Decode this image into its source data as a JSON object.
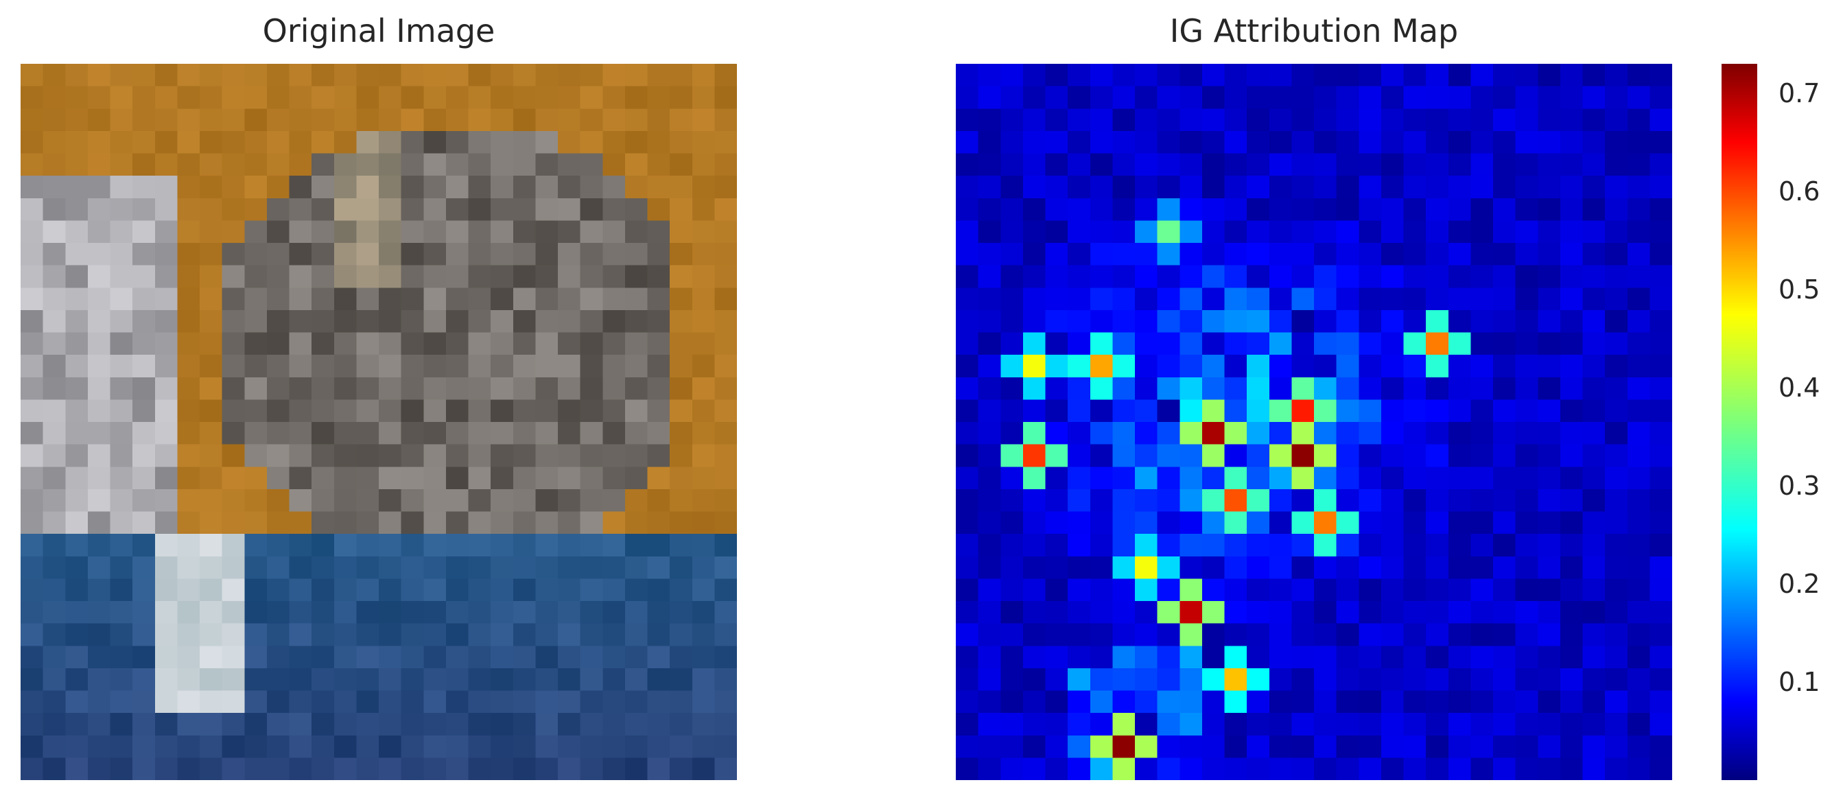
{
  "chart_data": [
    {
      "type": "image",
      "title": "Original Image",
      "grid": false,
      "note_colors": {
        "sky": "#b57a1f",
        "water": "#2a5f8f",
        "animal": "#6f6f6f"
      }
    },
    {
      "type": "heatmap",
      "title": "IG Attribution Map",
      "grid": false,
      "colormap": "jet",
      "vmin": 0.0,
      "vmax": 0.73,
      "colorbar_ticks": [
        "0.1",
        "0.2",
        "0.3",
        "0.4",
        "0.5",
        "0.6",
        "0.7"
      ],
      "hotspots": [
        {
          "row": 7,
          "col": 9,
          "v": 0.35
        },
        {
          "row": 12,
          "col": 21,
          "v": 0.55
        },
        {
          "row": 13,
          "col": 3,
          "v": 0.45
        },
        {
          "row": 13,
          "col": 6,
          "v": 0.52
        },
        {
          "row": 15,
          "col": 15,
          "v": 0.62
        },
        {
          "row": 16,
          "col": 11,
          "v": 0.7
        },
        {
          "row": 17,
          "col": 15,
          "v": 0.72
        },
        {
          "row": 17,
          "col": 3,
          "v": 0.6
        },
        {
          "row": 19,
          "col": 12,
          "v": 0.58
        },
        {
          "row": 20,
          "col": 16,
          "v": 0.55
        },
        {
          "row": 22,
          "col": 8,
          "v": 0.45
        },
        {
          "row": 24,
          "col": 10,
          "v": 0.68
        },
        {
          "row": 27,
          "col": 12,
          "v": 0.5
        },
        {
          "row": 30,
          "col": 7,
          "v": 0.72
        }
      ]
    }
  ]
}
